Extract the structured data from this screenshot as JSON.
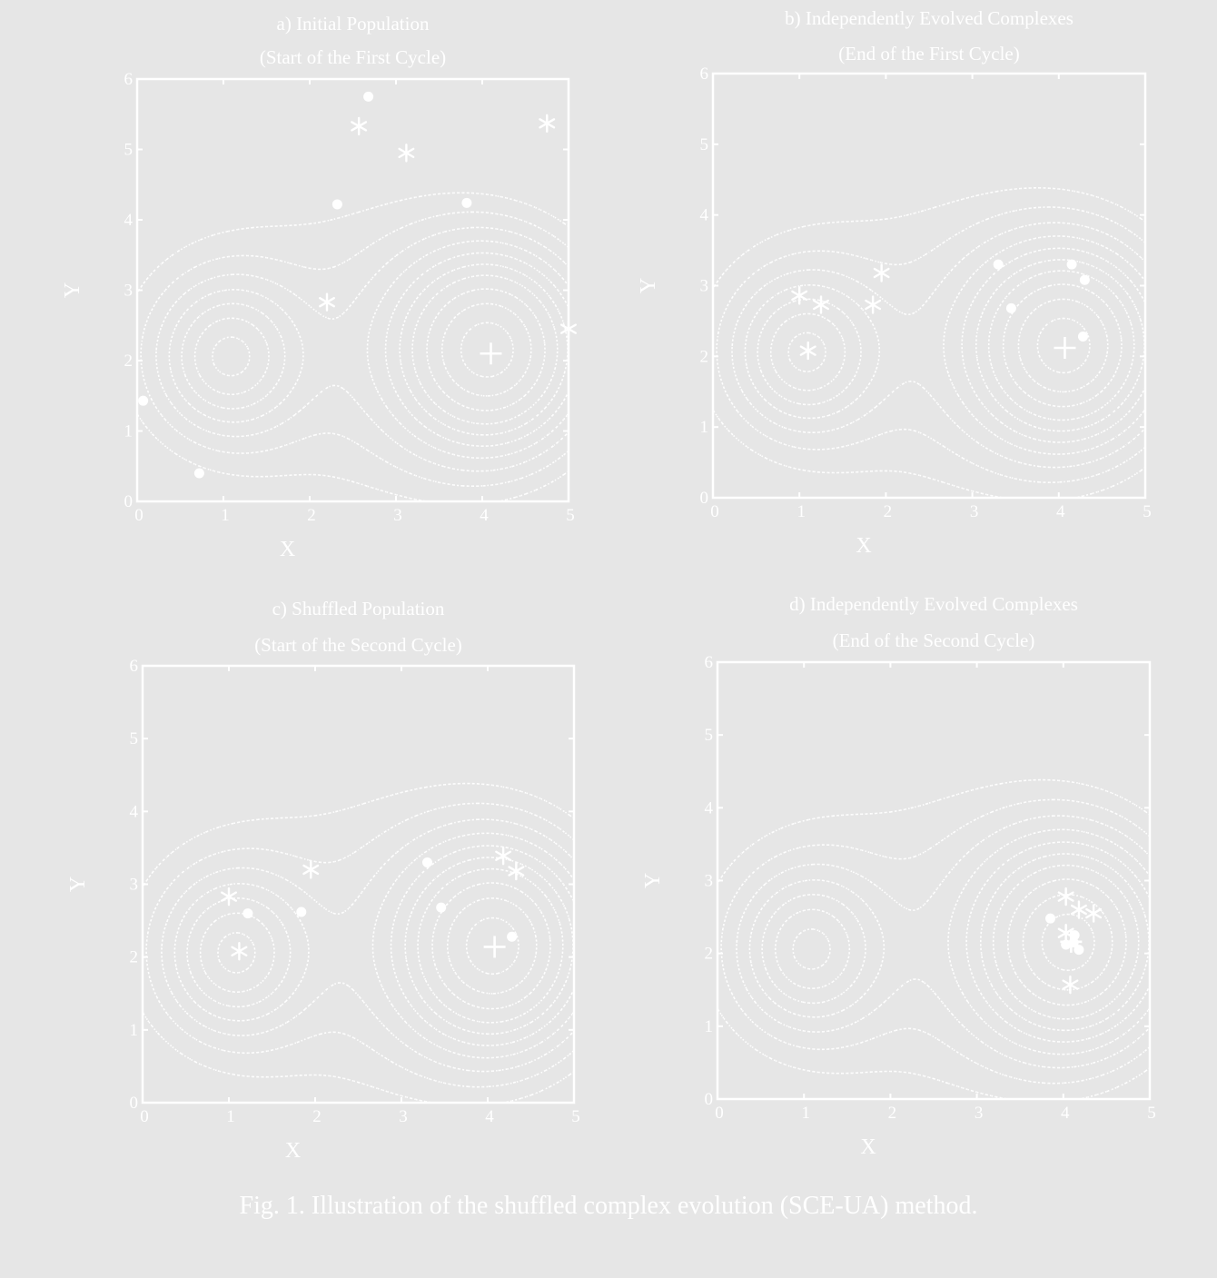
{
  "figure": {
    "caption": "Fig. 1. Illustration of the shuffled complex evolution (SCE-UA) method.",
    "colors": {
      "background": "#e6e6e6",
      "ink": "#ffffff"
    }
  },
  "chart_data": [
    {
      "type": "scatter",
      "title": "a) Initial Population",
      "subtitle": "(Start of the First Cycle)",
      "xlabel": "X",
      "ylabel": "Y",
      "xlim": [
        0,
        5
      ],
      "ylim": [
        0,
        6
      ],
      "xticks": [
        "0",
        "1",
        "2",
        "3",
        "4",
        "5"
      ],
      "yticks": [
        "0",
        "1",
        "2",
        "3",
        "4",
        "5",
        "6"
      ],
      "contours": true,
      "grid": false,
      "series": [
        {
          "marker": "dot",
          "points": [
            [
              2.68,
              5.75
            ],
            [
              2.32,
              4.22
            ],
            [
              3.82,
              4.24
            ],
            [
              0.07,
              1.43
            ],
            [
              0.72,
              0.4
            ]
          ]
        },
        {
          "marker": "asterisk",
          "points": [
            [
              2.57,
              5.33
            ],
            [
              3.12,
              4.95
            ],
            [
              4.75,
              5.37
            ],
            [
              2.2,
              2.83
            ],
            [
              5.0,
              2.45
            ]
          ]
        },
        {
          "marker": "plus",
          "points": [
            [
              4.1,
              2.1
            ]
          ]
        }
      ]
    },
    {
      "type": "scatter",
      "title": "b) Independently Evolved Complexes",
      "subtitle": "(End of the First Cycle)",
      "xlabel": "X",
      "ylabel": "Y",
      "xlim": [
        0,
        5
      ],
      "ylim": [
        0,
        6
      ],
      "xticks": [
        "0",
        "1",
        "2",
        "3",
        "4",
        "5"
      ],
      "yticks": [
        "0",
        "1",
        "2",
        "3",
        "4",
        "5",
        "6"
      ],
      "contours": true,
      "grid": false,
      "series": [
        {
          "marker": "dot",
          "points": [
            [
              3.3,
              3.3
            ],
            [
              4.15,
              3.3
            ],
            [
              4.3,
              3.08
            ],
            [
              3.45,
              2.68
            ],
            [
              4.28,
              2.28
            ]
          ]
        },
        {
          "marker": "asterisk",
          "points": [
            [
              1.95,
              3.18
            ],
            [
              1.0,
              2.86
            ],
            [
              1.25,
              2.73
            ],
            [
              1.85,
              2.73
            ],
            [
              1.1,
              2.08
            ]
          ]
        },
        {
          "marker": "plus",
          "points": [
            [
              4.07,
              2.12
            ]
          ]
        }
      ]
    },
    {
      "type": "scatter",
      "title": "c)  Shuffled Population",
      "subtitle": "(Start of the Second Cycle)",
      "xlabel": "X",
      "ylabel": "Y",
      "xlim": [
        0,
        5
      ],
      "ylim": [
        0,
        6
      ],
      "xticks": [
        "0",
        "1",
        "2",
        "3",
        "4",
        "5"
      ],
      "yticks": [
        "0",
        "1",
        "2",
        "3",
        "4",
        "5",
        "6"
      ],
      "contours": true,
      "grid": false,
      "series": [
        {
          "marker": "dot",
          "points": [
            [
              3.3,
              3.3
            ],
            [
              1.22,
              2.6
            ],
            [
              1.84,
              2.62
            ],
            [
              3.46,
              2.68
            ],
            [
              4.28,
              2.28
            ]
          ]
        },
        {
          "marker": "asterisk",
          "points": [
            [
              1.95,
              3.2
            ],
            [
              1.0,
              2.83
            ],
            [
              1.12,
              2.08
            ],
            [
              4.18,
              3.39
            ],
            [
              4.33,
              3.18
            ]
          ]
        },
        {
          "marker": "plus",
          "points": [
            [
              4.08,
              2.14
            ]
          ]
        }
      ]
    },
    {
      "type": "scatter",
      "title": "d) Independently Evolved Complexes",
      "subtitle": "(End of the Second Cycle)",
      "xlabel": "X",
      "ylabel": "Y",
      "xlim": [
        0,
        5
      ],
      "ylim": [
        0,
        6
      ],
      "xticks": [
        "0",
        "1",
        "2",
        "3",
        "4",
        "5"
      ],
      "yticks": [
        "0",
        "1",
        "2",
        "3",
        "4",
        "5",
        "6"
      ],
      "contours": true,
      "grid": false,
      "series": [
        {
          "marker": "dot",
          "points": [
            [
              3.85,
              2.48
            ],
            [
              4.13,
              2.25
            ],
            [
              4.03,
              2.12
            ],
            [
              4.18,
              2.05
            ],
            [
              4.12,
              2.15
            ]
          ]
        },
        {
          "marker": "asterisk",
          "points": [
            [
              4.03,
              2.78
            ],
            [
              4.18,
              2.6
            ],
            [
              4.35,
              2.55
            ],
            [
              4.03,
              2.28
            ],
            [
              4.08,
              1.57
            ]
          ]
        },
        {
          "marker": "plus",
          "points": [
            [
              4.09,
              2.16
            ]
          ]
        }
      ]
    }
  ]
}
